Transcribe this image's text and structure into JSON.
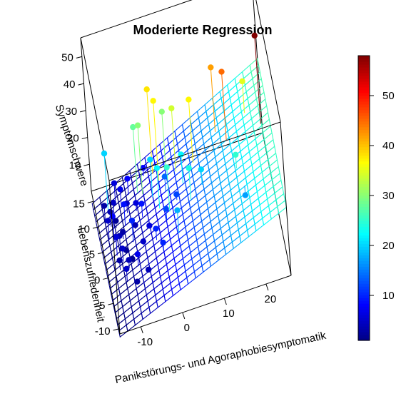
{
  "chart_data": {
    "type": "scatter",
    "title": "Moderierte Regression",
    "xlabel": "Panikstörungs- und Agoraphobiesymptomatik",
    "ylabel": "Lebenszufriedenheit",
    "zlabel": "Symptomschwere",
    "xticks": [
      "-10",
      "0",
      "10",
      "20"
    ],
    "yticks": [
      "-10",
      "-5",
      "0",
      "5",
      "10",
      "15"
    ],
    "zticks": [
      "10",
      "20",
      "30",
      "40",
      "50"
    ],
    "colorbar": {
      "ticks": [
        "10",
        "20",
        "30",
        "40",
        "50"
      ],
      "range": [
        1,
        58
      ],
      "palette": "jet"
    },
    "xlim": [
      -15,
      26
    ],
    "ylim": [
      -11,
      17
    ],
    "zlim": [
      0,
      57
    ],
    "regression_surface": {
      "intercept": 8,
      "b_x": 0.7,
      "b_y": -0.05,
      "b_xy": 0.005,
      "grid_steps": 22
    },
    "points": [
      {
        "x": -12,
        "y": 13,
        "z": 20
      },
      {
        "x": -13,
        "y": 12,
        "z": 3
      },
      {
        "x": -11,
        "y": 11,
        "z": 5
      },
      {
        "x": -12,
        "y": 10,
        "z": 4
      },
      {
        "x": -10,
        "y": 14,
        "z": 6
      },
      {
        "x": -11,
        "y": 9,
        "z": 2
      },
      {
        "x": -13,
        "y": 8,
        "z": 5
      },
      {
        "x": -12,
        "y": 7,
        "z": 8
      },
      {
        "x": -10,
        "y": 6,
        "z": 3
      },
      {
        "x": -11,
        "y": 5,
        "z": 4
      },
      {
        "x": -12,
        "y": 4,
        "z": 6
      },
      {
        "x": -9,
        "y": 12,
        "z": 7
      },
      {
        "x": -10,
        "y": 3,
        "z": 2
      },
      {
        "x": -11,
        "y": 2,
        "z": 5
      },
      {
        "x": -9,
        "y": 8,
        "z": 9
      },
      {
        "x": -12,
        "y": 1,
        "z": 3
      },
      {
        "x": -8,
        "y": 10,
        "z": 5
      },
      {
        "x": -10,
        "y": 0,
        "z": 4
      },
      {
        "x": -9,
        "y": 1,
        "z": 2
      },
      {
        "x": -11,
        "y": -2,
        "z": 5
      },
      {
        "x": -8,
        "y": 4,
        "z": 10
      },
      {
        "x": -7,
        "y": 13,
        "z": 8
      },
      {
        "x": -9,
        "y": -4,
        "z": 3
      },
      {
        "x": -7,
        "y": 6,
        "z": 4
      },
      {
        "x": -6,
        "y": 9,
        "z": 6
      },
      {
        "x": -8,
        "y": -1,
        "z": 7
      },
      {
        "x": -6,
        "y": 2,
        "z": 5
      },
      {
        "x": -5,
        "y": 12,
        "z": 28
      },
      {
        "x": -4,
        "y": 11,
        "z": 30
      },
      {
        "x": -5,
        "y": 7,
        "z": 9
      },
      {
        "x": -3,
        "y": 14,
        "z": 8
      },
      {
        "x": -4,
        "y": 4,
        "z": 6
      },
      {
        "x": -6,
        "y": -3,
        "z": 4
      },
      {
        "x": -2,
        "y": 9,
        "z": 20
      },
      {
        "x": -3,
        "y": 1,
        "z": 10
      },
      {
        "x": -1,
        "y": 13,
        "z": 38
      },
      {
        "x": 0,
        "y": 11,
        "z": 37
      },
      {
        "x": -1,
        "y": 6,
        "z": 22
      },
      {
        "x": 1,
        "y": 8,
        "z": 14
      },
      {
        "x": 0,
        "y": 3,
        "z": 12
      },
      {
        "x": -2,
        "y": -2,
        "z": 10
      },
      {
        "x": 2,
        "y": 12,
        "z": 30
      },
      {
        "x": 1,
        "y": 4,
        "z": 25
      },
      {
        "x": 3,
        "y": 5,
        "z": 12
      },
      {
        "x": 4,
        "y": 10,
        "z": 34
      },
      {
        "x": 2,
        "y": -1,
        "z": 18
      },
      {
        "x": 5,
        "y": 7,
        "z": 22
      },
      {
        "x": 6,
        "y": 3,
        "z": 24
      },
      {
        "x": 8,
        "y": 9,
        "z": 37
      },
      {
        "x": 9,
        "y": 4,
        "z": 20
      },
      {
        "x": 14,
        "y": 11,
        "z": 42
      },
      {
        "x": 16,
        "y": 8,
        "z": 45
      },
      {
        "x": 17,
        "y": 2,
        "z": 25
      },
      {
        "x": 18,
        "y": -2,
        "z": 17
      },
      {
        "x": 21,
        "y": 10,
        "z": 35
      },
      {
        "x": 24,
        "y": 6,
        "z": 58
      }
    ]
  }
}
